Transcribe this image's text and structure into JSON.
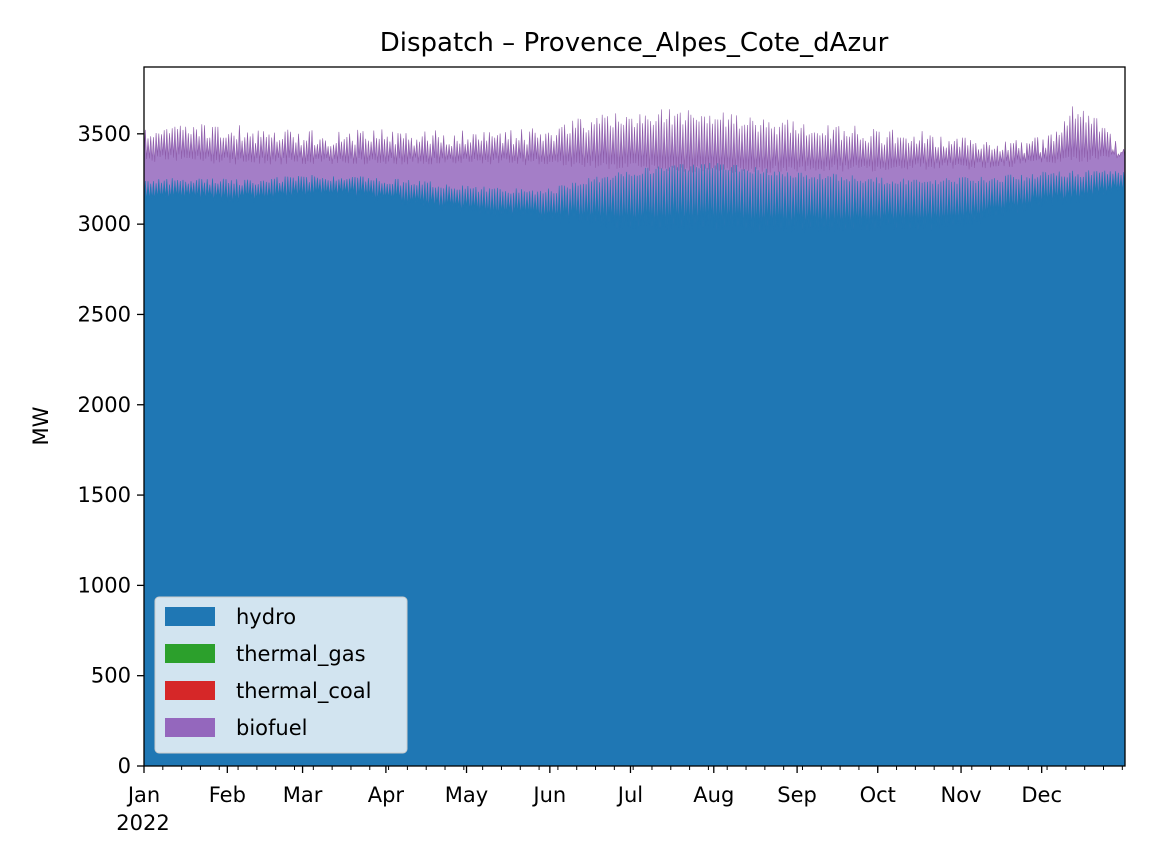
{
  "chart_data": {
    "type": "area",
    "stacked": true,
    "title": "Dispatch – Provence_Alpes_Cote_dAzur",
    "ylabel": "MW",
    "xlabel": "",
    "ylim": [
      0,
      3870
    ],
    "yticks": [
      0,
      500,
      1000,
      1500,
      2000,
      2500,
      3000,
      3500
    ],
    "xlim": [
      "2022-01-01",
      "2023-01-01"
    ],
    "xtick_labels": [
      {
        "label": "Jan",
        "date": "2022-01-01"
      },
      {
        "label": "Feb",
        "date": "2022-02-01"
      },
      {
        "label": "Mar",
        "date": "2022-03-01"
      },
      {
        "label": "Apr",
        "date": "2022-04-01"
      },
      {
        "label": "May",
        "date": "2022-05-01"
      },
      {
        "label": "Jun",
        "date": "2022-06-01"
      },
      {
        "label": "Jul",
        "date": "2022-07-01"
      },
      {
        "label": "Aug",
        "date": "2022-08-01"
      },
      {
        "label": "Sep",
        "date": "2022-09-01"
      },
      {
        "label": "Oct",
        "date": "2022-10-01"
      },
      {
        "label": "Nov",
        "date": "2022-11-01"
      },
      {
        "label": "Dec",
        "date": "2022-12-01"
      }
    ],
    "year_label": "2022",
    "legend_position": "lower-left",
    "grid": false,
    "series": [
      {
        "name": "hydro",
        "color": "#1f77b4",
        "x": [
          "2022-01-01",
          "2022-01-15",
          "2022-02-01",
          "2022-02-15",
          "2022-03-01",
          "2022-03-15",
          "2022-04-01",
          "2022-04-15",
          "2022-05-01",
          "2022-05-15",
          "2022-06-01",
          "2022-06-15",
          "2022-07-01",
          "2022-07-15",
          "2022-08-01",
          "2022-08-15",
          "2022-09-01",
          "2022-09-15",
          "2022-10-01",
          "2022-10-15",
          "2022-11-01",
          "2022-11-15",
          "2022-12-01",
          "2022-12-15",
          "2022-12-31"
        ],
        "base": [
          3100,
          3120,
          3110,
          3110,
          3130,
          3140,
          3110,
          3080,
          3050,
          3030,
          3010,
          2990,
          2960,
          2960,
          2960,
          2950,
          2950,
          2950,
          2960,
          2960,
          2960,
          3030,
          3090,
          3110,
          3180
        ],
        "peak": [
          3250,
          3260,
          3250,
          3260,
          3270,
          3280,
          3260,
          3240,
          3220,
          3210,
          3200,
          3260,
          3300,
          3330,
          3340,
          3320,
          3290,
          3280,
          3260,
          3250,
          3260,
          3270,
          3290,
          3300,
          3300
        ]
      },
      {
        "name": "thermal_gas",
        "color": "#2ca02c",
        "x": [
          "2022-01-01",
          "2022-12-31"
        ],
        "values": [
          0,
          0
        ]
      },
      {
        "name": "thermal_coal",
        "color": "#d62728",
        "x": [
          "2022-01-01",
          "2022-12-31"
        ],
        "values": [
          0,
          0
        ]
      },
      {
        "name": "biofuel",
        "color": "#9467bd",
        "x": [
          "2022-01-01",
          "2022-01-15",
          "2022-02-01",
          "2022-02-15",
          "2022-03-01",
          "2022-03-15",
          "2022-04-01",
          "2022-04-15",
          "2022-05-01",
          "2022-05-15",
          "2022-06-01",
          "2022-06-15",
          "2022-07-01",
          "2022-07-15",
          "2022-08-01",
          "2022-08-15",
          "2022-09-01",
          "2022-09-15",
          "2022-10-01",
          "2022-10-15",
          "2022-11-01",
          "2022-11-15",
          "2022-12-01",
          "2022-12-15",
          "2022-12-31"
        ],
        "top_low": [
          3360,
          3370,
          3350,
          3350,
          3350,
          3350,
          3350,
          3350,
          3350,
          3350,
          3340,
          3330,
          3320,
          3310,
          3300,
          3300,
          3310,
          3310,
          3310,
          3320,
          3320,
          3330,
          3350,
          3360,
          3380
        ],
        "top_high": [
          3540,
          3560,
          3560,
          3530,
          3520,
          3520,
          3530,
          3520,
          3520,
          3520,
          3540,
          3600,
          3620,
          3640,
          3630,
          3590,
          3580,
          3560,
          3530,
          3520,
          3490,
          3490,
          3480,
          3690,
          3440
        ]
      }
    ]
  }
}
